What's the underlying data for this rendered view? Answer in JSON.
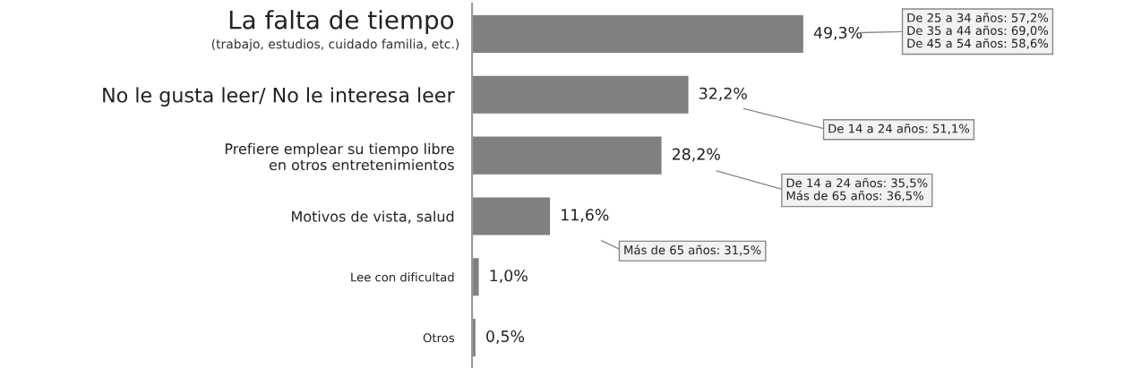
{
  "chart_data": {
    "type": "bar",
    "orientation": "horizontal",
    "categories": [
      "La falta de tiempo\n(trabajo, estudios, cuidado familia, etc.)",
      "No le gusta leer/ No le interesa leer",
      "Prefiere emplear su tiempo libre\nen otros entretenimientos",
      "Motivos de vista, salud",
      "Lee con dificultad",
      "Otros"
    ],
    "values": [
      49.3,
      32.2,
      28.2,
      11.6,
      1.0,
      0.5
    ],
    "value_labels": [
      "49,3%",
      "32,2%",
      "28,2%",
      "11,6%",
      "1,0%",
      "0,5%"
    ],
    "color": "#808080",
    "tick_labels": "y",
    "grid": false,
    "annotations": [
      "De 25 a 34 años: 57,2%\nDe 35 a 44 años: 69,0%\nDe 45 a 54 años: 58,6%",
      "De 14 a 24 años: 51,1%",
      "De 14 a 24 años: 35,5%\nMás de 65 años: 36,5%",
      "Más de 65 años: 31,5%"
    ]
  }
}
